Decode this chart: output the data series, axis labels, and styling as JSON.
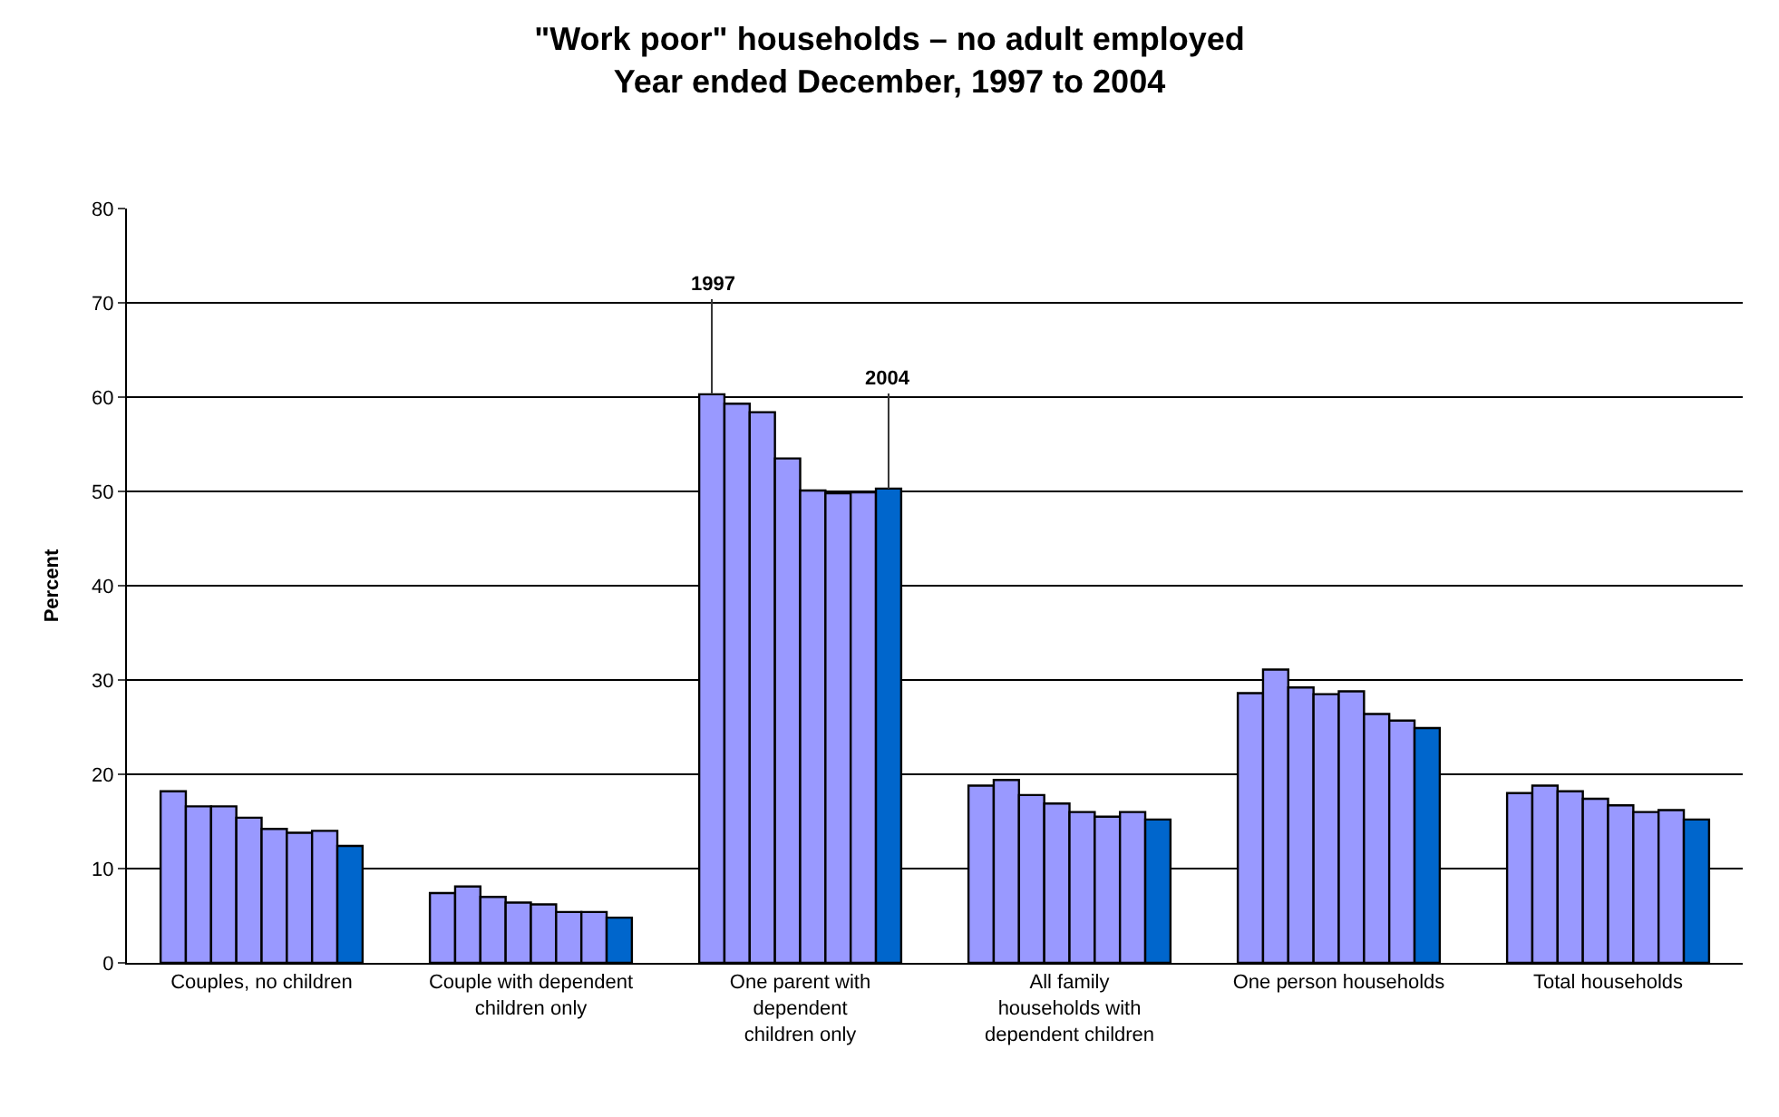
{
  "chart_data": {
    "type": "bar",
    "title": "\"Work poor\" households – no adult employed",
    "subtitle": "Year ended December, 1997 to 2004",
    "ylabel": "Percent",
    "categories": [
      "Couples, no children",
      "Couple with dependent\nchildren only",
      "One parent with\ndependent\nchildren only",
      "All family\nhouseholds with\ndependent children",
      "One person households",
      "Total households"
    ],
    "series": [
      {
        "color": "#9999ff",
        "values": [
          18.2,
          7.4,
          60.3,
          18.8,
          28.6,
          18.0
        ]
      },
      {
        "color": "#9999ff",
        "values": [
          16.6,
          8.1,
          59.3,
          19.4,
          31.1,
          18.8
        ]
      },
      {
        "color": "#9999ff",
        "values": [
          16.6,
          7.0,
          58.4,
          17.8,
          29.2,
          18.2
        ]
      },
      {
        "color": "#9999ff",
        "values": [
          15.4,
          6.4,
          53.5,
          16.9,
          28.5,
          17.4
        ]
      },
      {
        "color": "#9999ff",
        "values": [
          14.2,
          6.2,
          50.1,
          16.0,
          28.8,
          16.7
        ]
      },
      {
        "color": "#9999ff",
        "values": [
          13.8,
          5.4,
          49.8,
          15.5,
          26.4,
          16.0
        ]
      },
      {
        "color": "#9999ff",
        "values": [
          14.0,
          5.4,
          49.9,
          16.0,
          25.7,
          16.2
        ]
      },
      {
        "color": "#0066cc",
        "values": [
          12.4,
          4.8,
          50.3,
          15.2,
          24.9,
          15.2
        ]
      }
    ],
    "annotations": [
      {
        "text": "1997",
        "y": 60.3
      },
      {
        "text": "2004",
        "y": 50.3
      }
    ],
    "ylim": [
      0,
      80
    ],
    "yticks": [
      0,
      10,
      20,
      30,
      40,
      50,
      60,
      70,
      80
    ],
    "grid": "y"
  }
}
